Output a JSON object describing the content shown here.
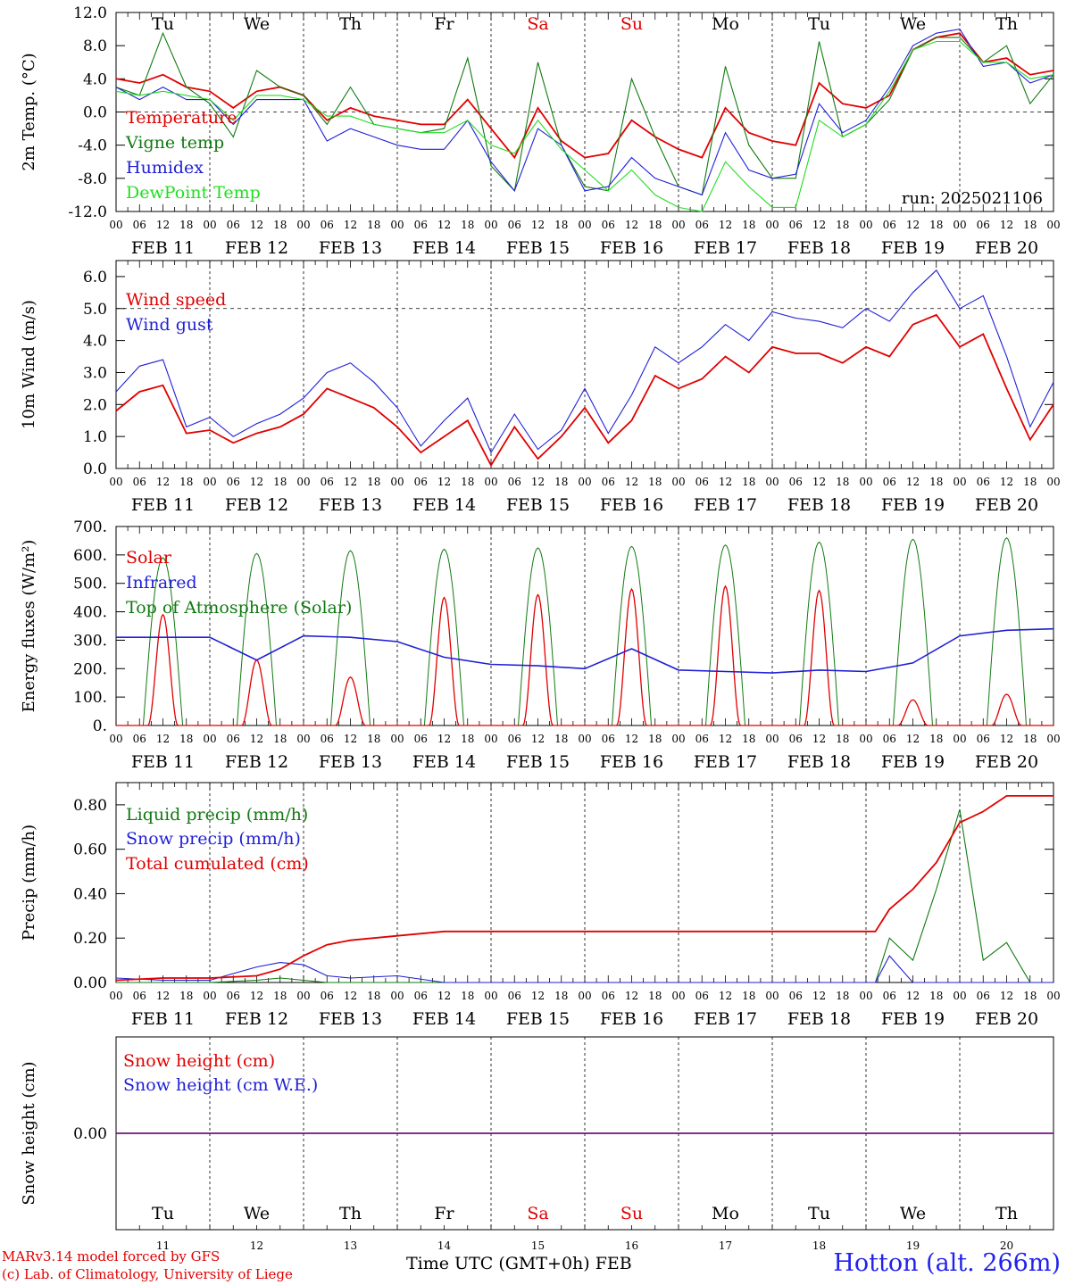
{
  "colors": {
    "red": "#e00000",
    "green": "#117a11",
    "blue": "#1f1fd6",
    "lightgreen": "#22dd22",
    "black": "#000000"
  },
  "x_axis": {
    "hour_ticks": [
      "00",
      "06",
      "12",
      "18"
    ],
    "dates": [
      "FEB 11",
      "FEB 12",
      "FEB 13",
      "FEB 14",
      "FEB 15",
      "FEB 16",
      "FEB 17",
      "FEB 18",
      "FEB 19",
      "FEB 20"
    ],
    "weekdays": [
      {
        "label": "Tu",
        "color": "#000000"
      },
      {
        "label": "We",
        "color": "#000000"
      },
      {
        "label": "Th",
        "color": "#000000"
      },
      {
        "label": "Fr",
        "color": "#000000"
      },
      {
        "label": "Sa",
        "color": "#e00000"
      },
      {
        "label": "Su",
        "color": "#e00000"
      },
      {
        "label": "Mo",
        "color": "#000000"
      },
      {
        "label": "Tu",
        "color": "#000000"
      },
      {
        "label": "We",
        "color": "#000000"
      },
      {
        "label": "Th",
        "color": "#000000"
      }
    ],
    "day_numbers": [
      "11",
      "12",
      "13",
      "14",
      "15",
      "16",
      "17",
      "18",
      "19",
      "20"
    ]
  },
  "footer": {
    "line1": "MARv3.14 model forced by GFS",
    "line2": "(c) Lab. of Climatology, University of Liege",
    "time_label": "Time UTC (GMT+0h) FEB",
    "station": "Hotton (alt. 266m)"
  },
  "chart_data": [
    {
      "type": "line",
      "ylabel": "2m Temp. (°C)",
      "ylim": [
        -12,
        12
      ],
      "yticks": [
        "12.0",
        "8.0",
        "4.0",
        "0.0",
        "-4.0",
        "-8.0",
        "-12.0"
      ],
      "ytick_values": [
        12,
        8,
        4,
        0,
        -4,
        -8,
        -12
      ],
      "ref_line": 0,
      "annotation": "run: 2025021106",
      "x_days": [
        0,
        0.25,
        0.5,
        0.75,
        1,
        1.25,
        1.5,
        1.75,
        2,
        2.25,
        2.5,
        2.75,
        3,
        3.25,
        3.5,
        3.75,
        4,
        4.25,
        4.5,
        4.75,
        5,
        5.25,
        5.5,
        5.75,
        6,
        6.25,
        6.5,
        6.75,
        7,
        7.25,
        7.5,
        7.75,
        8,
        8.25,
        8.5,
        8.75,
        9,
        9.25,
        9.5,
        9.75,
        10
      ],
      "series": [
        {
          "name": "Temperature",
          "color": "#e00000",
          "values": [
            4.0,
            3.5,
            4.5,
            3.0,
            2.5,
            0.5,
            2.5,
            3.0,
            2.0,
            -1.0,
            0.5,
            -0.5,
            -1.0,
            -1.5,
            -1.5,
            1.5,
            -2.0,
            -5.5,
            0.5,
            -3.5,
            -5.5,
            -5.0,
            -1.0,
            -3.0,
            -4.5,
            -5.5,
            0.5,
            -2.5,
            -3.5,
            -4.0,
            3.5,
            1.0,
            0.5,
            2.0,
            7.5,
            9.0,
            9.5,
            6.0,
            6.5,
            4.5,
            5.0
          ]
        },
        {
          "name": "Vigne temp",
          "color": "#117a11",
          "values": [
            3.0,
            2.0,
            9.5,
            3.0,
            1.0,
            -3.0,
            5.0,
            3.0,
            2.0,
            -1.5,
            3.0,
            -1.5,
            -2.0,
            -2.5,
            -2.0,
            6.5,
            -6.5,
            -9.5,
            6.0,
            -4.0,
            -9.0,
            -9.5,
            4.0,
            -3.0,
            -9.0,
            -10.0,
            5.5,
            -4.0,
            -8.0,
            -8.0,
            8.5,
            -3.0,
            -1.5,
            1.5,
            7.5,
            9.0,
            9.0,
            6.0,
            8.0,
            1.0,
            4.5
          ]
        },
        {
          "name": "Humidex",
          "color": "#1f1fd6",
          "values": [
            3.0,
            1.5,
            3.0,
            1.5,
            1.5,
            -1.5,
            1.5,
            1.5,
            1.5,
            -3.5,
            -2.0,
            -3.0,
            -4.0,
            -4.5,
            -4.5,
            -1.0,
            -6.0,
            -9.5,
            -2.0,
            -4.0,
            -9.5,
            -9.0,
            -5.5,
            -8.0,
            -9.0,
            -10.0,
            -2.5,
            -7.0,
            -8.0,
            -7.5,
            1.0,
            -2.5,
            -1.0,
            3.0,
            8.0,
            9.5,
            10.0,
            5.5,
            6.0,
            3.5,
            4.5
          ]
        },
        {
          "name": "DewPoint Temp",
          "color": "#22dd22",
          "values": [
            2.5,
            2.0,
            2.5,
            2.0,
            1.5,
            -1.0,
            2.0,
            2.0,
            1.5,
            -0.5,
            -0.5,
            -1.5,
            -2.0,
            -2.5,
            -2.5,
            -1.0,
            -4.0,
            -5.0,
            -1.0,
            -4.5,
            -7.0,
            -9.5,
            -7.0,
            -10.0,
            -11.5,
            -12.0,
            -6.0,
            -9.0,
            -11.5,
            -11.5,
            -1.0,
            -3.0,
            -1.5,
            2.5,
            7.5,
            8.5,
            8.5,
            6.0,
            6.0,
            4.0,
            4.5
          ]
        }
      ]
    },
    {
      "type": "line",
      "ylabel": "10m Wind (m/s)",
      "ylim": [
        0,
        6.5
      ],
      "yticks": [
        "6.0",
        "5.0",
        "4.0",
        "3.0",
        "2.0",
        "1.0",
        "0.0"
      ],
      "ytick_values": [
        6,
        5,
        4,
        3,
        2,
        1,
        0
      ],
      "ref_line": 5,
      "x_days": [
        0,
        0.25,
        0.5,
        0.75,
        1,
        1.25,
        1.5,
        1.75,
        2,
        2.25,
        2.5,
        2.75,
        3,
        3.25,
        3.5,
        3.75,
        4,
        4.25,
        4.5,
        4.75,
        5,
        5.25,
        5.5,
        5.75,
        6,
        6.25,
        6.5,
        6.75,
        7,
        7.25,
        7.5,
        7.75,
        8,
        8.25,
        8.5,
        8.75,
        9,
        9.25,
        9.5,
        9.75,
        10
      ],
      "series": [
        {
          "name": "Wind speed",
          "color": "#e00000",
          "values": [
            1.8,
            2.4,
            2.6,
            1.1,
            1.2,
            0.8,
            1.1,
            1.3,
            1.7,
            2.5,
            2.2,
            1.9,
            1.3,
            0.5,
            1.0,
            1.5,
            0.1,
            1.3,
            0.3,
            1.0,
            1.9,
            0.8,
            1.5,
            2.9,
            2.5,
            2.8,
            3.5,
            3.0,
            3.8,
            3.6,
            3.6,
            3.3,
            3.8,
            3.5,
            4.5,
            4.8,
            3.8,
            4.2,
            2.5,
            0.9,
            2.0
          ]
        },
        {
          "name": "Wind gust",
          "color": "#1f1fd6",
          "values": [
            2.4,
            3.2,
            3.4,
            1.3,
            1.6,
            1.0,
            1.4,
            1.7,
            2.2,
            3.0,
            3.3,
            2.7,
            1.9,
            0.7,
            1.5,
            2.2,
            0.5,
            1.7,
            0.6,
            1.2,
            2.5,
            1.1,
            2.3,
            3.8,
            3.3,
            3.8,
            4.5,
            4.0,
            4.9,
            4.7,
            4.6,
            4.4,
            5.0,
            4.6,
            5.5,
            6.2,
            5.0,
            5.4,
            3.5,
            1.3,
            2.7
          ]
        }
      ]
    },
    {
      "type": "line",
      "ylabel": "Energy fluxes (W/m²)",
      "ylim": [
        0,
        700
      ],
      "yticks": [
        "700.",
        "600.",
        "500.",
        "400.",
        "300.",
        "200.",
        "100.",
        "0."
      ],
      "ytick_values": [
        700,
        600,
        500,
        400,
        300,
        200,
        100,
        0
      ],
      "days_toa_peak": [
        590,
        605,
        615,
        620,
        625,
        630,
        635,
        645,
        655,
        660
      ],
      "days_solar_peak": [
        390,
        230,
        170,
        450,
        460,
        480,
        490,
        475,
        90,
        110
      ],
      "x_days": [
        0,
        0.5,
        1,
        1.5,
        2,
        2.5,
        3,
        3.5,
        4,
        4.5,
        5,
        5.5,
        6,
        6.5,
        7,
        7.5,
        8,
        8.5,
        9,
        9.5,
        10
      ],
      "series": [
        {
          "name": "Solar",
          "color": "#e00000",
          "values": []
        },
        {
          "name": "Infrared",
          "color": "#1f1fd6",
          "values": [
            310,
            310,
            310,
            230,
            315,
            310,
            295,
            240,
            215,
            210,
            200,
            270,
            195,
            190,
            185,
            195,
            190,
            220,
            315,
            335,
            340
          ]
        },
        {
          "name": "Top of Atmosphere (Solar)",
          "color": "#117a11",
          "values": []
        }
      ]
    },
    {
      "type": "line",
      "ylabel": "Precip (mm/h)",
      "ylim": [
        0,
        0.9
      ],
      "yticks": [
        "0.80",
        "0.60",
        "0.40",
        "0.20",
        "0.00"
      ],
      "ytick_values": [
        0.8,
        0.6,
        0.4,
        0.2,
        0.0
      ],
      "x_days": [
        0,
        0.5,
        1,
        1.5,
        1.75,
        2,
        2.25,
        2.5,
        3,
        3.5,
        4,
        5,
        6,
        7,
        8,
        8.1,
        8.25,
        8.5,
        8.75,
        9,
        9.25,
        9.5,
        9.75,
        10
      ],
      "series": [
        {
          "name": "Liquid precip (mm/h)",
          "color": "#117a11",
          "values": [
            0,
            0,
            0,
            0.01,
            0.02,
            0.01,
            0,
            0,
            0,
            0,
            0,
            0,
            0,
            0,
            0,
            0,
            0.2,
            0.1,
            0.42,
            0.78,
            0.1,
            0.18,
            0,
            0
          ]
        },
        {
          "name": "Snow precip (mm/h)",
          "color": "#1f1fd6",
          "values": [
            0.02,
            0.01,
            0.01,
            0.07,
            0.09,
            0.08,
            0.03,
            0.02,
            0.03,
            0,
            0,
            0,
            0,
            0,
            0,
            0,
            0.12,
            0,
            0,
            0,
            0,
            0,
            0,
            0
          ]
        },
        {
          "name": "Total cumulated (cm)",
          "color": "#e00000",
          "values": [
            0.01,
            0.02,
            0.02,
            0.03,
            0.06,
            0.12,
            0.17,
            0.19,
            0.21,
            0.23,
            0.23,
            0.23,
            0.23,
            0.23,
            0.23,
            0.23,
            0.33,
            0.42,
            0.54,
            0.72,
            0.77,
            0.84,
            0.84,
            0.84
          ]
        }
      ]
    },
    {
      "type": "line",
      "ylabel": "Snow height (cm)",
      "ylim": [
        -1,
        1
      ],
      "yticks": [
        "0.00"
      ],
      "ytick_values": [
        0
      ],
      "x_days": [
        0,
        10
      ],
      "series": [
        {
          "name": "Snow height (cm)",
          "color": "#e00000",
          "values": [
            0,
            0
          ]
        },
        {
          "name": "Snow height (cm W.E.)",
          "color": "#1f1fd6",
          "values": [
            0,
            0
          ]
        }
      ]
    }
  ]
}
